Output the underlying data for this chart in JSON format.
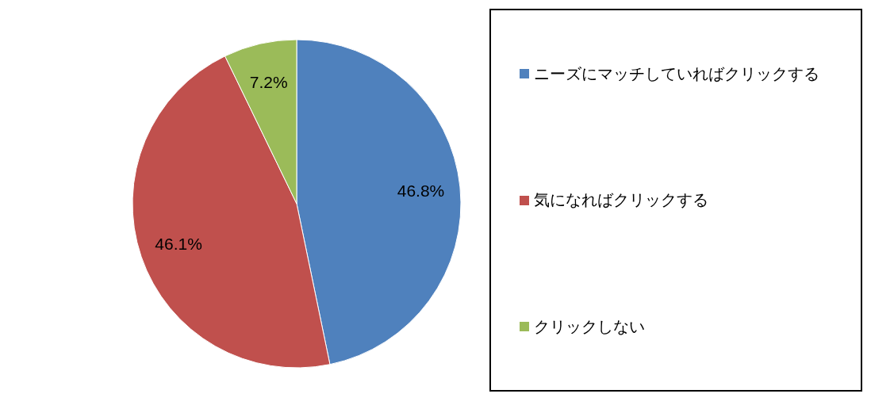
{
  "chart_data": {
    "type": "pie",
    "categories": [
      "ニーズにマッチしていればクリックする",
      "気になればクリックする",
      "クリックしない"
    ],
    "values": [
      46.8,
      46.1,
      7.2
    ],
    "value_labels": [
      "46.8%",
      "46.1%",
      "7.2%"
    ],
    "colors": [
      "#4f81bd",
      "#c0504d",
      "#9bbb59"
    ],
    "legend": "right"
  }
}
